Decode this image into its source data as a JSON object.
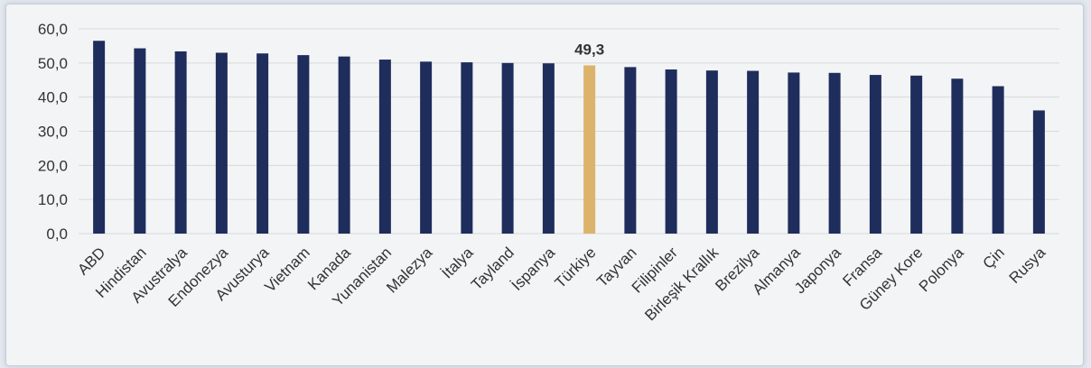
{
  "chart_data": {
    "type": "bar",
    "categories": [
      "ABD",
      "Hindistan",
      "Avustralya",
      "Endonezya",
      "Avusturya",
      "Vietnam",
      "Kanada",
      "Yunanistan",
      "Malezya",
      "İtalya",
      "Tayland",
      "İspanya",
      "Türkiye",
      "Tayvan",
      "Filipinler",
      "Birleşik Krallık",
      "Brezilya",
      "Almanya",
      "Japonya",
      "Fransa",
      "Güney Kore",
      "Polonya",
      "Çin",
      "Rusya"
    ],
    "values": [
      56.5,
      54.3,
      53.4,
      53.0,
      52.8,
      52.3,
      51.9,
      51.0,
      50.4,
      50.2,
      50.0,
      49.9,
      49.3,
      48.8,
      48.1,
      47.8,
      47.7,
      47.2,
      47.1,
      46.5,
      46.3,
      45.4,
      43.2,
      36.1
    ],
    "ylim": [
      0,
      60
    ],
    "yticks": [
      "0,0",
      "10,0",
      "20,0",
      "30,0",
      "40,0",
      "50,0",
      "60,0"
    ],
    "grid": true,
    "title": "",
    "xlabel": "",
    "ylabel": "",
    "highlight": {
      "category": "Türkiye",
      "label": "49,3"
    },
    "colors": {
      "bar": "#1f2d5c",
      "highlight": "#dcb36a",
      "grid": "#d9d9d9"
    }
  }
}
